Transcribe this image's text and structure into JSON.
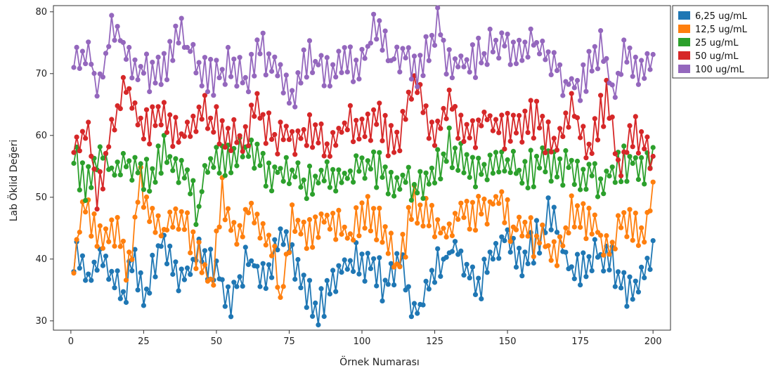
{
  "chart_data": {
    "type": "line",
    "xlabel": "Örnek Numarası",
    "ylabel": "Lab Öklid Değeri",
    "xlim": [
      -6,
      206
    ],
    "ylim": [
      28.5,
      81
    ],
    "xticks": [
      0,
      25,
      50,
      75,
      100,
      125,
      150,
      175,
      200
    ],
    "yticks": [
      30,
      40,
      50,
      60,
      70,
      80
    ],
    "grid": false,
    "legend_position": "outside-top-right",
    "x_start": 1,
    "x_end": 200,
    "series": [
      {
        "name": "6,25 ug/mL",
        "color": "#1f77b4",
        "anchors": [
          [
            1,
            41
          ],
          [
            6,
            37
          ],
          [
            12,
            40
          ],
          [
            18,
            34
          ],
          [
            22,
            40
          ],
          [
            25,
            33
          ],
          [
            31,
            44
          ],
          [
            38,
            36
          ],
          [
            44,
            41
          ],
          [
            50,
            38
          ],
          [
            55,
            33
          ],
          [
            60,
            40
          ],
          [
            68,
            37
          ],
          [
            73,
            45
          ],
          [
            78,
            37
          ],
          [
            85,
            32
          ],
          [
            92,
            39
          ],
          [
            100,
            40
          ],
          [
            108,
            36
          ],
          [
            114,
            40
          ],
          [
            118,
            30.5
          ],
          [
            125,
            38
          ],
          [
            132,
            42
          ],
          [
            140,
            36
          ],
          [
            150,
            44
          ],
          [
            156,
            39
          ],
          [
            165,
            48
          ],
          [
            172,
            37
          ],
          [
            180,
            41
          ],
          [
            186,
            39
          ],
          [
            192,
            34
          ],
          [
            200,
            42
          ]
        ]
      },
      {
        "name": "12,5 ug/mL",
        "color": "#ff7f0e",
        "anchors": [
          [
            1,
            40
          ],
          [
            5,
            49
          ],
          [
            10,
            44
          ],
          [
            16,
            45
          ],
          [
            20,
            38
          ],
          [
            24,
            53
          ],
          [
            30,
            44
          ],
          [
            38,
            46
          ],
          [
            45,
            40
          ],
          [
            48,
            35
          ],
          [
            52,
            50
          ],
          [
            58,
            44
          ],
          [
            62,
            49
          ],
          [
            70,
            42
          ],
          [
            72,
            33
          ],
          [
            76,
            46
          ],
          [
            82,
            44
          ],
          [
            88,
            47
          ],
          [
            96,
            44
          ],
          [
            100,
            48
          ],
          [
            108,
            44
          ],
          [
            112,
            38
          ],
          [
            118,
            49
          ],
          [
            124,
            46
          ],
          [
            130,
            44
          ],
          [
            134,
            49
          ],
          [
            140,
            47
          ],
          [
            147,
            50
          ],
          [
            152,
            45
          ],
          [
            160,
            43
          ],
          [
            166,
            41
          ],
          [
            172,
            47
          ],
          [
            180,
            45
          ],
          [
            186,
            41
          ],
          [
            190,
            47
          ],
          [
            196,
            44
          ],
          [
            200,
            49.5
          ]
        ]
      },
      {
        "name": "25 ug/mL",
        "color": "#2ca02c",
        "anchors": [
          [
            1,
            57
          ],
          [
            5,
            51
          ],
          [
            10,
            58
          ],
          [
            15,
            54
          ],
          [
            21,
            56
          ],
          [
            26,
            53
          ],
          [
            32,
            57
          ],
          [
            38,
            55
          ],
          [
            44,
            47
          ],
          [
            46,
            55
          ],
          [
            52,
            56
          ],
          [
            60,
            57
          ],
          [
            68,
            54
          ],
          [
            75,
            55
          ],
          [
            80,
            52
          ],
          [
            86,
            54
          ],
          [
            92,
            53
          ],
          [
            98,
            55
          ],
          [
            104,
            55
          ],
          [
            108,
            53
          ],
          [
            114,
            53
          ],
          [
            118,
            52
          ],
          [
            124,
            54
          ],
          [
            130,
            58
          ],
          [
            136,
            55
          ],
          [
            142,
            54
          ],
          [
            150,
            55
          ],
          [
            156,
            54
          ],
          [
            164,
            56
          ],
          [
            170,
            55
          ],
          [
            176,
            54
          ],
          [
            182,
            53
          ],
          [
            190,
            56
          ],
          [
            196,
            55
          ],
          [
            200,
            56.5
          ]
        ]
      },
      {
        "name": "50 ug/mL",
        "color": "#d62728",
        "anchors": [
          [
            1,
            58
          ],
          [
            6,
            62
          ],
          [
            9,
            49.5
          ],
          [
            14,
            61
          ],
          [
            19,
            68
          ],
          [
            25,
            61
          ],
          [
            32,
            63
          ],
          [
            38,
            60
          ],
          [
            45,
            64
          ],
          [
            52,
            61
          ],
          [
            58,
            59
          ],
          [
            64,
            64
          ],
          [
            70,
            59
          ],
          [
            76,
            60
          ],
          [
            82,
            61
          ],
          [
            88,
            58
          ],
          [
            94,
            62
          ],
          [
            100,
            61
          ],
          [
            106,
            62
          ],
          [
            112,
            58
          ],
          [
            118,
            69
          ],
          [
            124,
            60
          ],
          [
            130,
            66
          ],
          [
            136,
            59
          ],
          [
            142,
            63
          ],
          [
            148,
            60
          ],
          [
            154,
            62
          ],
          [
            160,
            63
          ],
          [
            166,
            58
          ],
          [
            172,
            64
          ],
          [
            178,
            58
          ],
          [
            184,
            66
          ],
          [
            188,
            55
          ],
          [
            194,
            60
          ],
          [
            200,
            56.5
          ]
        ]
      },
      {
        "name": "100 ug/mL",
        "color": "#9467bd",
        "anchors": [
          [
            1,
            71
          ],
          [
            6,
            74
          ],
          [
            9,
            67
          ],
          [
            15,
            78
          ],
          [
            21,
            72
          ],
          [
            28,
            70
          ],
          [
            33,
            72
          ],
          [
            38,
            76
          ],
          [
            44,
            71
          ],
          [
            50,
            69
          ],
          [
            55,
            72
          ],
          [
            60,
            69
          ],
          [
            65,
            74
          ],
          [
            70,
            71
          ],
          [
            76,
            66
          ],
          [
            82,
            73
          ],
          [
            88,
            70
          ],
          [
            94,
            71
          ],
          [
            100,
            72
          ],
          [
            104,
            77
          ],
          [
            110,
            72
          ],
          [
            115,
            74
          ],
          [
            120,
            70
          ],
          [
            126,
            79
          ],
          [
            130,
            71
          ],
          [
            136,
            72
          ],
          [
            142,
            73
          ],
          [
            148,
            76
          ],
          [
            154,
            73
          ],
          [
            160,
            75
          ],
          [
            165,
            73
          ],
          [
            170,
            68
          ],
          [
            176,
            69
          ],
          [
            182,
            74
          ],
          [
            186,
            67
          ],
          [
            190,
            73
          ],
          [
            196,
            70
          ],
          [
            200,
            71
          ]
        ]
      }
    ]
  }
}
